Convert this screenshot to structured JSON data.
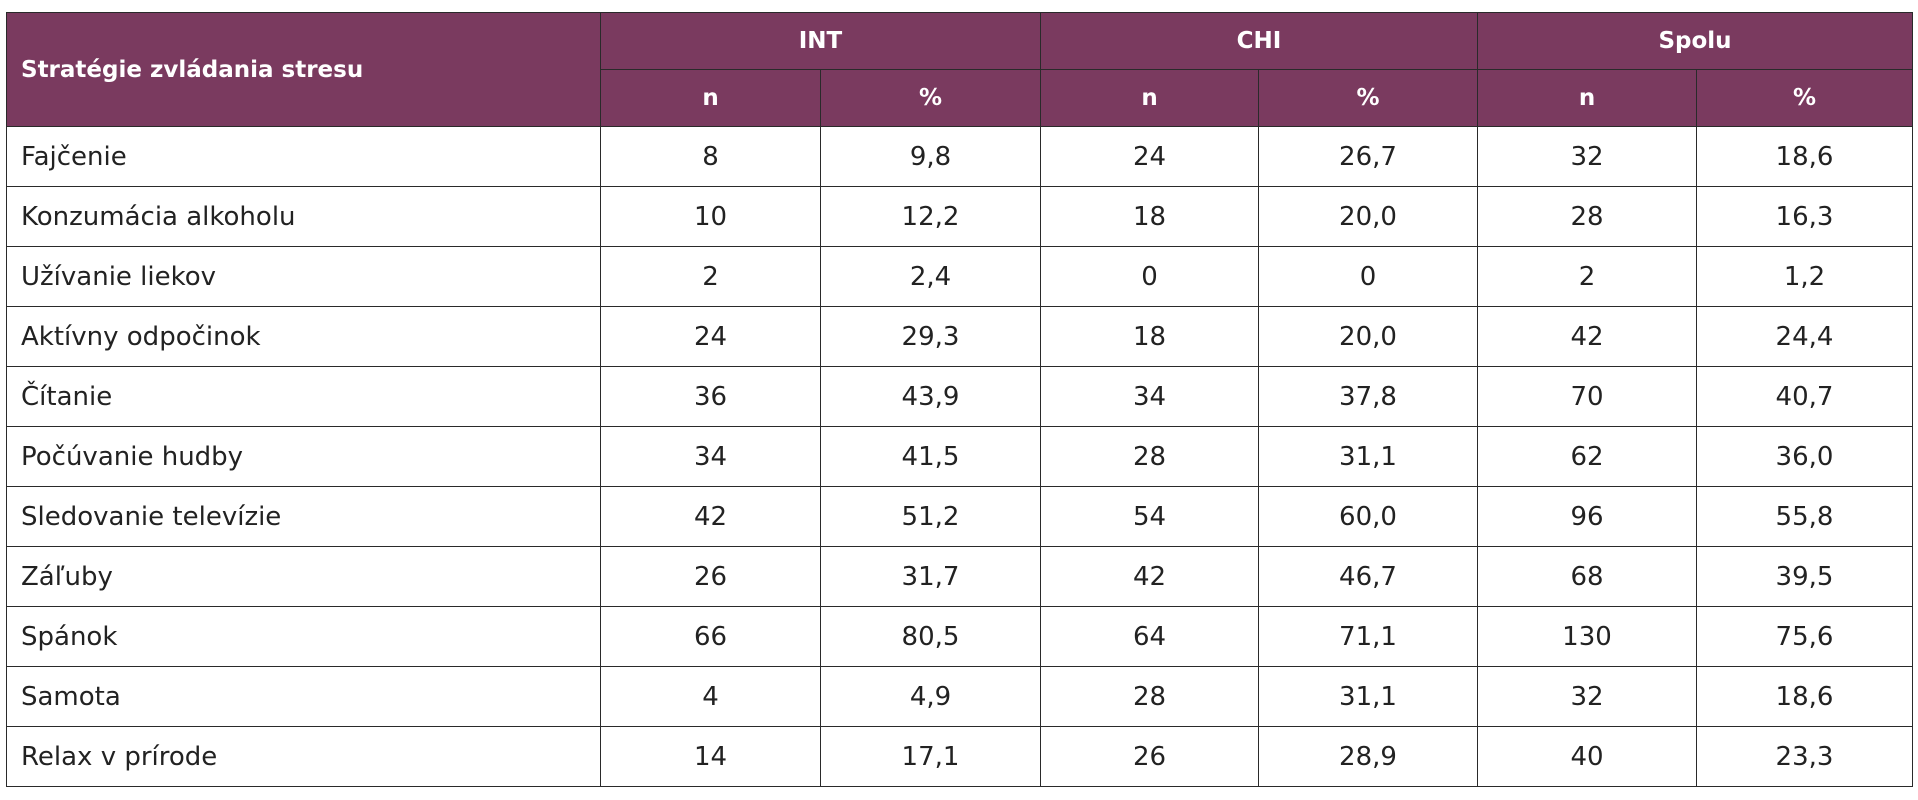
{
  "table": {
    "title": "Stratégie zvládania stresu",
    "groups": [
      "INT",
      "CHI",
      "Spolu"
    ],
    "subheaders": [
      "n",
      "%",
      "n",
      "%",
      "n",
      "%"
    ],
    "rows": [
      [
        "Fajčenie",
        "8",
        "9,8",
        "24",
        "26,7",
        "32",
        "18,6"
      ],
      [
        "Konzumácia alkoholu",
        "10",
        "12,2",
        "18",
        "20,0",
        "28",
        "16,3"
      ],
      [
        "Užívanie liekov",
        "2",
        "2,4",
        "0",
        "0",
        "2",
        "1,2"
      ],
      [
        "Aktívny odpočinok",
        "24",
        "29,3",
        "18",
        "20,0",
        "42",
        "24,4"
      ],
      [
        "Čítanie",
        "36",
        "43,9",
        "34",
        "37,8",
        "70",
        "40,7"
      ],
      [
        "Počúvanie hudby",
        "34",
        "41,5",
        "28",
        "31,1",
        "62",
        "36,0"
      ],
      [
        "Sledovanie televízie",
        "42",
        "51,2",
        "54",
        "60,0",
        "96",
        "55,8"
      ],
      [
        "Záľuby",
        "26",
        "31,7",
        "42",
        "46,7",
        "68",
        "39,5"
      ],
      [
        "Spánok",
        "66",
        "80,5",
        "64",
        "71,1",
        "130",
        "75,6"
      ],
      [
        "Samota",
        "4",
        "4,9",
        "28",
        "31,1",
        "32",
        "18,6"
      ],
      [
        "Relax v prírode",
        "14",
        "17,1",
        "26",
        "28,9",
        "40",
        "23,3"
      ]
    ]
  }
}
